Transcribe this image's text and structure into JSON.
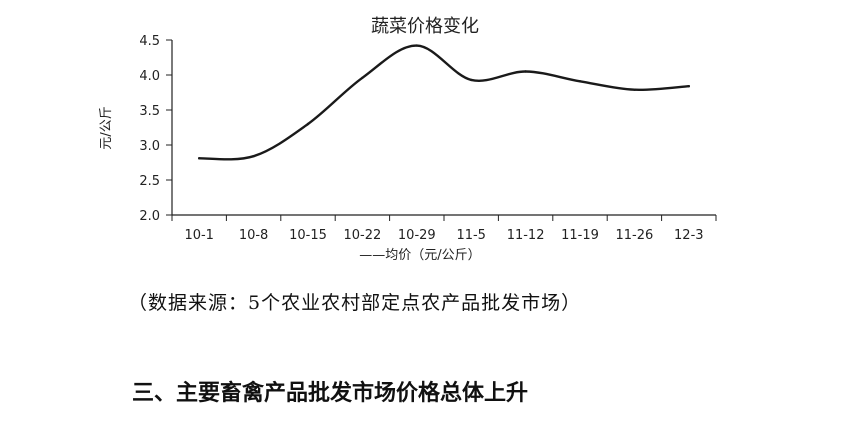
{
  "chart_data": {
    "type": "line",
    "title": "蔬菜价格变化",
    "xlabel": "",
    "ylabel": "元/公斤",
    "categories": [
      "10-1",
      "10-8",
      "10-15",
      "10-22",
      "10-29",
      "11-5",
      "11-12",
      "11-19",
      "11-26",
      "12-3"
    ],
    "series": [
      {
        "name": "均价（元/公斤）",
        "legend_label": "——均价（元/公斤）",
        "values": [
          2.81,
          2.84,
          3.3,
          3.96,
          4.42,
          3.93,
          4.05,
          3.91,
          3.79,
          3.84
        ]
      }
    ],
    "yticks": [
      "2.0",
      "2.5",
      "3.0",
      "3.5",
      "4.0",
      "4.5"
    ],
    "ylim": [
      2.0,
      4.5
    ],
    "grid": false,
    "legend_position": "bottom",
    "line_color": "#1a1a1a"
  },
  "source_note": "（数据来源：5个农业农村部定点农产品批发市场）",
  "section_heading": "三、主要畜禽产品批发市场价格总体上升"
}
